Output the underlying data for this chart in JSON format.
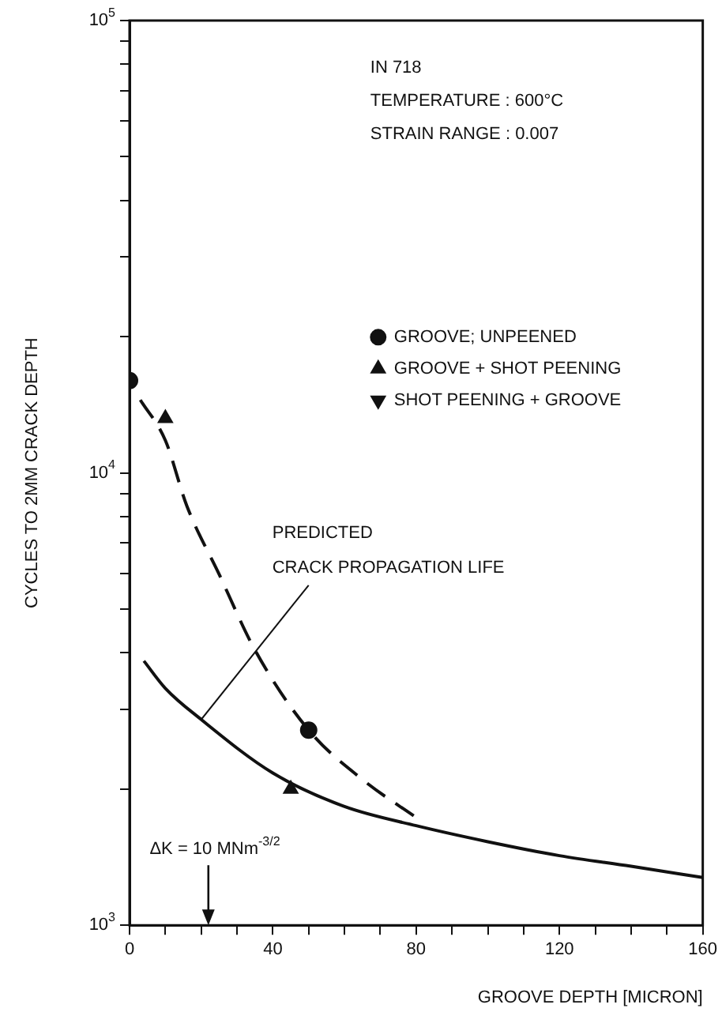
{
  "chart_data": {
    "type": "scatter",
    "xlabel": "GROOVE DEPTH [MICRON]",
    "ylabel": "CYCLES TO 2MM CRACK DEPTH",
    "log": "y",
    "legend": "top right",
    "xlim": [
      0,
      160
    ],
    "xticks": [
      0,
      {
        "value": 10,
        "label": null
      },
      {
        "value": 20,
        "label": null
      },
      {
        "value": 30,
        "label": null
      },
      40,
      {
        "value": 50,
        "label": null
      },
      {
        "value": 60,
        "label": null
      },
      {
        "value": 70,
        "label": null
      },
      80,
      {
        "value": 90,
        "label": null
      },
      {
        "value": 100,
        "label": null
      },
      {
        "value": 110,
        "label": null
      },
      120,
      {
        "value": 130,
        "label": null
      },
      {
        "value": 140,
        "label": null
      },
      {
        "value": 150,
        "label": null
      },
      160
    ],
    "ylim": [
      1000,
      100000
    ],
    "yticks": [
      {
        "value": 1000,
        "label": "10$^{3}$"
      },
      {
        "value": 2000,
        "label": null
      },
      {
        "value": 3000,
        "label": null
      },
      {
        "value": 4000,
        "label": null
      },
      {
        "value": 5000,
        "label": null
      },
      {
        "value": 6000,
        "label": null
      },
      {
        "value": 7000,
        "label": null
      },
      {
        "value": 8000,
        "label": null
      },
      {
        "value": 9000,
        "label": null
      },
      {
        "value": 10000,
        "label": "10$^{4}$"
      },
      {
        "value": 20000,
        "label": null
      },
      {
        "value": 30000,
        "label": null
      },
      {
        "value": 40000,
        "label": null
      },
      {
        "value": 50000,
        "label": null
      },
      {
        "value": 60000,
        "label": null
      },
      {
        "value": 70000,
        "label": null
      },
      {
        "value": 80000,
        "label": null
      },
      {
        "value": 90000,
        "label": null
      },
      {
        "value": 100000,
        "label": "10$^{5}$"
      }
    ],
    "annotations": [
      "IN 718",
      "TEMPERATURE : 600°C",
      "STRAIN RANGE : 0.007",
      {
        "text": "PREDICTED CRACK PROPAGATION LIFE",
        "x": 20,
        "y": 2850
      },
      "ΔK = 10 MNm$^{-3/2}$"
    ],
    "series": [
      {
        "name": "GROOVE; UNPEENED",
        "marker": "circle",
        "color": "#111111",
        "x": [
          0,
          50
        ],
        "values": [
          16000,
          2700
        ]
      },
      {
        "name": "GROOVE + SHOT PEENING",
        "marker": "triangle",
        "color": "#111111",
        "x": [
          10,
          45
        ],
        "values": [
          13200,
          2000
        ]
      },
      {
        "name": "SHOT PEENING + GROOVE",
        "marker": "triangle-down",
        "color": "#111111"
      },
      {
        "type": "line",
        "marker": "none",
        "line_style": "dashed",
        "color": "#111111",
        "x": [
          3,
          10,
          16,
          25,
          35,
          50,
          65,
          80
        ],
        "values": [
          14500,
          11800,
          8450,
          5970,
          4060,
          2700,
          2100,
          1730
        ]
      },
      {
        "type": "line",
        "marker": "none",
        "line_style": "solid",
        "color": "#111111",
        "x": [
          4,
          10,
          20,
          40,
          60,
          80,
          100,
          120,
          140,
          160
        ],
        "values": [
          3840,
          3340,
          2850,
          2170,
          1830,
          1660,
          1530,
          1425,
          1350,
          1275
        ]
      }
    ]
  }
}
